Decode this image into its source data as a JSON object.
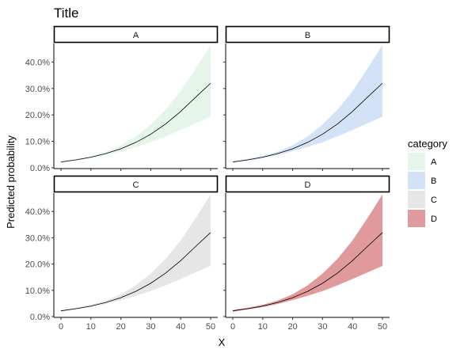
{
  "chart_data": {
    "type": "area",
    "title": "Title",
    "xlabel": "X",
    "ylabel": "Predicted probability",
    "xlim": [
      0,
      50
    ],
    "ylim": [
      0,
      0.47
    ],
    "x_ticks": [
      0,
      10,
      20,
      30,
      40,
      50
    ],
    "x_tick_labels": [
      "0",
      "10",
      "20",
      "30",
      "40",
      "50"
    ],
    "y_ticks": [
      0,
      0.1,
      0.2,
      0.3,
      0.4
    ],
    "y_tick_labels": [
      "0.0%",
      "10.0%",
      "20.0%",
      "30.0%",
      "40.0%"
    ],
    "grid": false,
    "legend": {
      "title": "category",
      "position": "right",
      "entries": [
        {
          "label": "A",
          "color": "#e5f5e9"
        },
        {
          "label": "B",
          "color": "#d4e2f8"
        },
        {
          "label": "C",
          "color": "#e6e6e6"
        },
        {
          "label": "D",
          "color": "#e09a9b"
        }
      ]
    },
    "x": [
      0,
      5,
      10,
      15,
      20,
      25,
      30,
      35,
      40,
      45,
      50
    ],
    "series": [
      {
        "name": "A",
        "facet": "A",
        "fill": "#e5f5e9",
        "fit": [
          0.022,
          0.03,
          0.04,
          0.054,
          0.072,
          0.096,
          0.127,
          0.166,
          0.213,
          0.267,
          0.32
        ],
        "lower": [
          0.019,
          0.027,
          0.036,
          0.048,
          0.063,
          0.079,
          0.097,
          0.119,
          0.143,
          0.168,
          0.193
        ],
        "upper": [
          0.025,
          0.034,
          0.045,
          0.061,
          0.085,
          0.119,
          0.164,
          0.22,
          0.29,
          0.375,
          0.465
        ]
      },
      {
        "name": "B",
        "facet": "B",
        "fill": "#d4e2f8",
        "fit": [
          0.022,
          0.03,
          0.04,
          0.054,
          0.072,
          0.096,
          0.127,
          0.166,
          0.213,
          0.267,
          0.32
        ],
        "lower": [
          0.019,
          0.027,
          0.036,
          0.048,
          0.063,
          0.079,
          0.097,
          0.119,
          0.143,
          0.168,
          0.193
        ],
        "upper": [
          0.025,
          0.034,
          0.045,
          0.061,
          0.085,
          0.119,
          0.164,
          0.22,
          0.29,
          0.375,
          0.465
        ]
      },
      {
        "name": "C",
        "facet": "C",
        "fill": "#e6e6e6",
        "fit": [
          0.022,
          0.03,
          0.04,
          0.054,
          0.072,
          0.096,
          0.127,
          0.166,
          0.213,
          0.267,
          0.32
        ],
        "lower": [
          0.019,
          0.027,
          0.036,
          0.048,
          0.063,
          0.079,
          0.097,
          0.119,
          0.143,
          0.168,
          0.193
        ],
        "upper": [
          0.025,
          0.034,
          0.045,
          0.061,
          0.085,
          0.119,
          0.164,
          0.22,
          0.29,
          0.375,
          0.465
        ]
      },
      {
        "name": "D",
        "facet": "D",
        "fill": "#e09a9b",
        "fit": [
          0.022,
          0.03,
          0.04,
          0.054,
          0.072,
          0.096,
          0.127,
          0.166,
          0.213,
          0.267,
          0.32
        ],
        "lower": [
          0.019,
          0.027,
          0.036,
          0.048,
          0.063,
          0.079,
          0.097,
          0.119,
          0.143,
          0.168,
          0.193
        ],
        "upper": [
          0.025,
          0.034,
          0.045,
          0.061,
          0.085,
          0.119,
          0.164,
          0.22,
          0.29,
          0.375,
          0.465
        ]
      }
    ]
  }
}
